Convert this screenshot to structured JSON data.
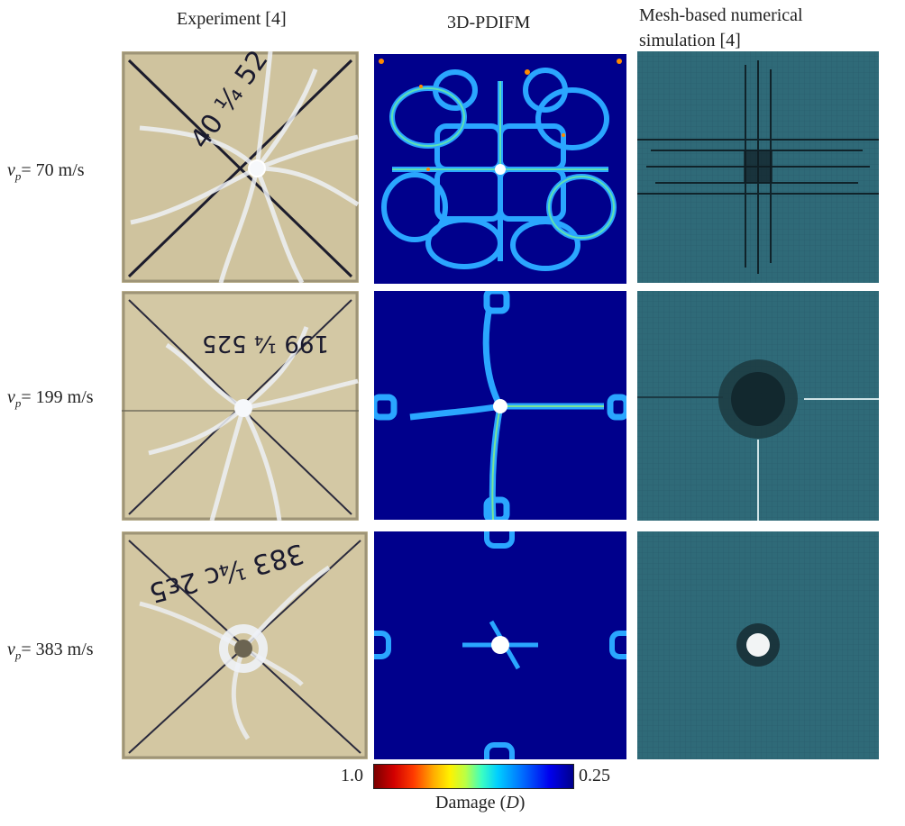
{
  "headers": {
    "col1": "Experiment [4]",
    "col2": "3D-PDIFM",
    "col3_line1": "Mesh-based numerical",
    "col3_line2": "simulation [4]"
  },
  "rows": [
    {
      "v_symbol": "v",
      "v_sub": "p",
      "value": "= 70 m/s"
    },
    {
      "v_symbol": "v",
      "v_sub": "p",
      "value": "= 199 m/s"
    },
    {
      "v_symbol": "v",
      "v_sub": "p",
      "value": "= 383 m/s"
    }
  ],
  "handwriting": {
    "row1": "40 ¼ 52",
    "row2": "199 ¼ 525",
    "row3": "383 ¼c 2ε5"
  },
  "colorbar": {
    "min_label": "1.0",
    "max_label": "0.25",
    "title": "Damage",
    "symbol": "D",
    "colormap": "jet",
    "colors": {
      "high": "#7a0000",
      "low": "#00008c"
    }
  },
  "mesh_color": "#2f6a78",
  "glass_color": "#cfc39e"
}
